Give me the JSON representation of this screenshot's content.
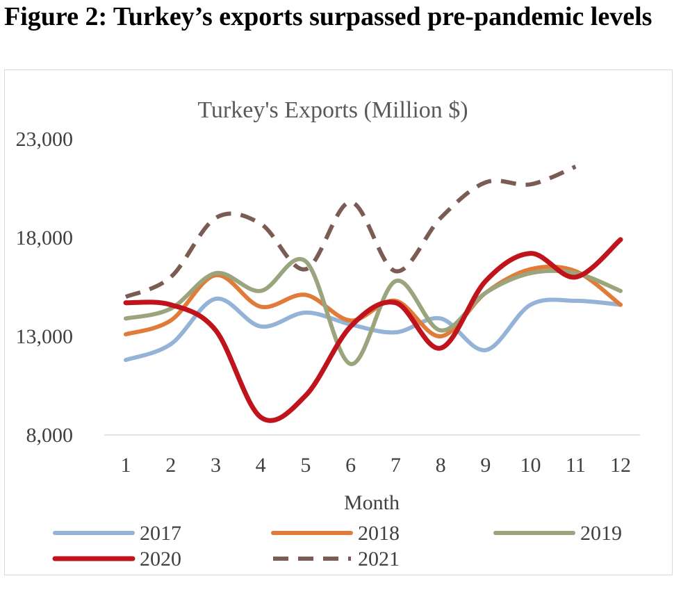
{
  "figure": {
    "title": "Figure 2: Turkey’s exports surpassed pre-pandemic levels"
  },
  "chart_data": {
    "type": "line",
    "title": "Turkey's Exports (Million $)",
    "xlabel": "Month",
    "ylabel": "",
    "categories": [
      "1",
      "2",
      "3",
      "4",
      "5",
      "6",
      "7",
      "8",
      "9",
      "10",
      "11",
      "12"
    ],
    "ylim": [
      8000,
      23000
    ],
    "yticks": [
      8000,
      13000,
      18000,
      23000
    ],
    "ytick_labels": [
      "8,000",
      "13,000",
      "18,000",
      "23,000"
    ],
    "grid": false,
    "legend_position": "bottom",
    "series": [
      {
        "name": "2017",
        "color": "#95b3d7",
        "dashed": false,
        "values": [
          11800,
          12600,
          14900,
          13500,
          14200,
          13600,
          13200,
          13900,
          12300,
          14600,
          14800,
          14600
        ]
      },
      {
        "name": "2018",
        "color": "#e07b39",
        "dashed": false,
        "values": [
          13100,
          13800,
          16100,
          14500,
          15100,
          13800,
          14800,
          13000,
          15200,
          16400,
          16300,
          14600
        ]
      },
      {
        "name": "2019",
        "color": "#9aa47d",
        "dashed": false,
        "values": [
          13900,
          14400,
          16200,
          15300,
          16800,
          11600,
          15800,
          13300,
          15200,
          16200,
          16200,
          15300
        ]
      },
      {
        "name": "2020",
        "color": "#c0141c",
        "dashed": false,
        "values": [
          14700,
          14600,
          13300,
          8900,
          10000,
          13500,
          14700,
          12400,
          15800,
          17200,
          16000,
          17900
        ]
      },
      {
        "name": "2021",
        "color": "#7a5c54",
        "dashed": true,
        "values": [
          15000,
          16000,
          19000,
          18700,
          16400,
          19800,
          16300,
          19000,
          20800,
          20700,
          21600,
          null
        ]
      }
    ]
  }
}
